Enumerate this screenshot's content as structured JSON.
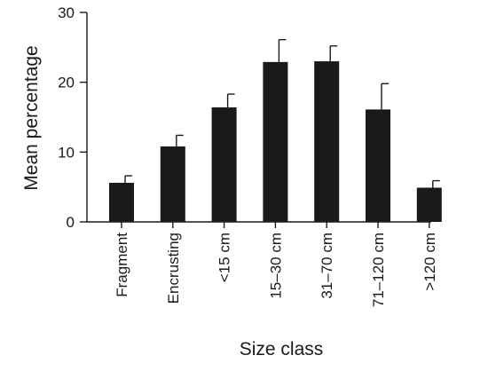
{
  "chart_data": {
    "type": "bar",
    "title": "",
    "xlabel": "Size class",
    "ylabel": "Mean percentage",
    "categories": [
      "Fragment",
      "Encrusting",
      "<15 cm",
      "15–30 cm",
      "31–70 cm",
      "71–120 cm",
      ">120 cm"
    ],
    "values": [
      5.6,
      10.8,
      16.4,
      22.9,
      23.0,
      16.1,
      4.9
    ],
    "error_upper": [
      6.6,
      12.4,
      18.3,
      26.1,
      25.2,
      19.8,
      5.9
    ],
    "ylim": [
      0,
      30
    ],
    "yticks": [
      0,
      10,
      20,
      30
    ],
    "yticks_labels": [
      "0",
      "10",
      "20",
      "30"
    ],
    "grid": false,
    "legend": "none",
    "bar_color": "#1a1a1a"
  }
}
